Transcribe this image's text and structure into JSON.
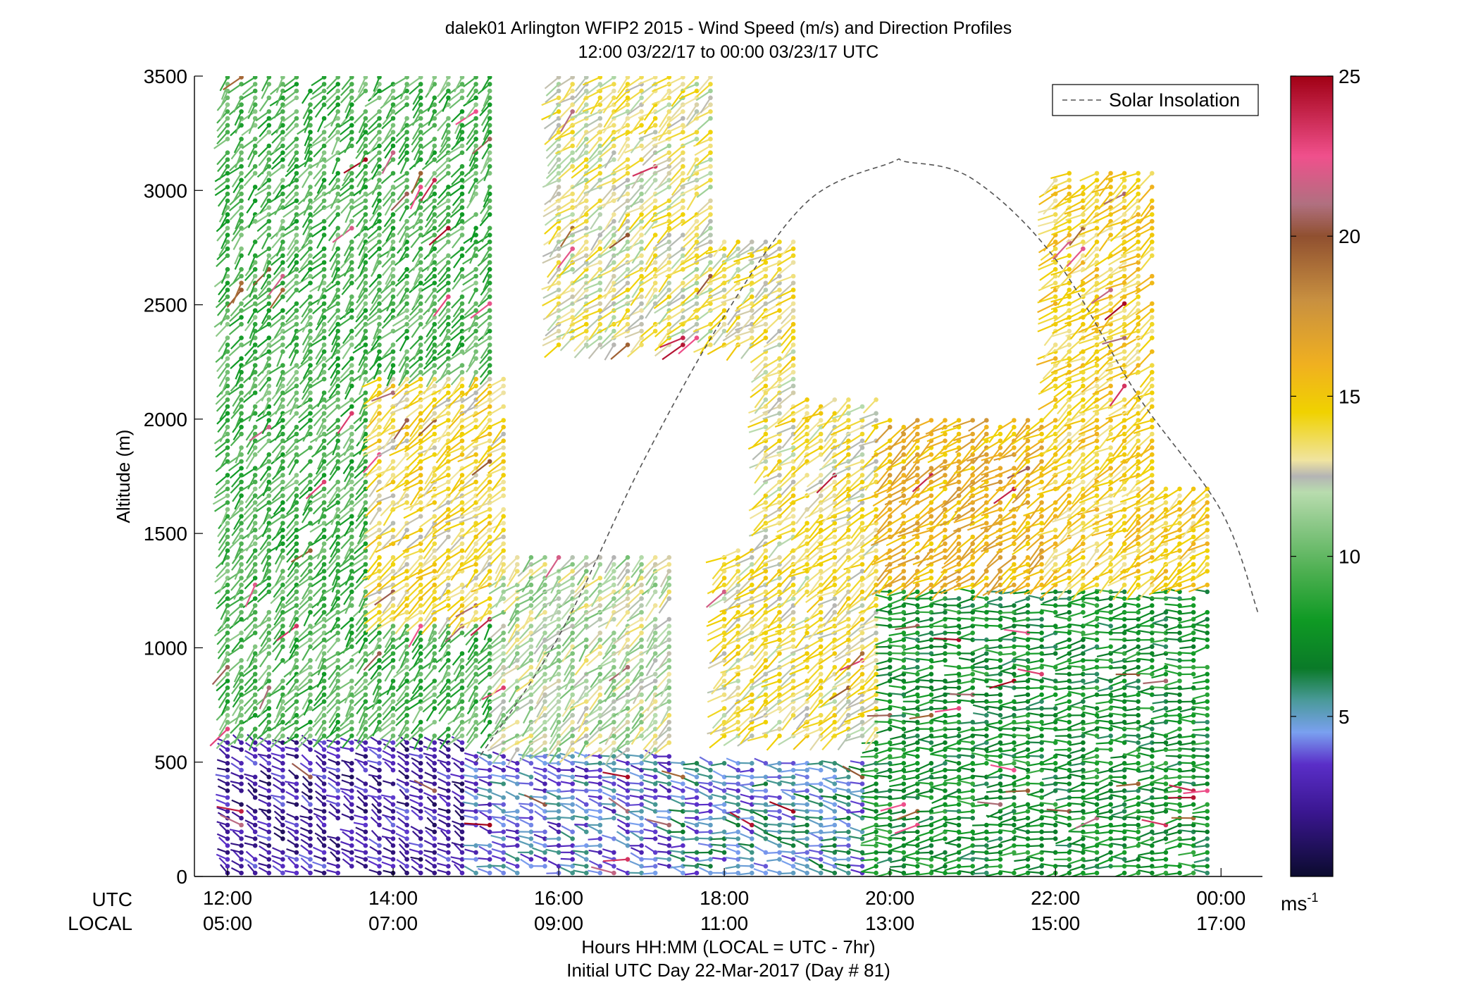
{
  "chart_data": {
    "type": "wind-barb-profile",
    "title": "dalek01 Arlington WFIP2 2015 - Wind Speed (m/s) and Direction Profiles",
    "subtitle": "12:00 03/22/17 to 00:00 03/23/17  UTC",
    "ylabel": "Altitude (m)",
    "ylim": [
      0,
      3500
    ],
    "yticks": [
      0,
      500,
      1000,
      1500,
      2000,
      2500,
      3000,
      3500
    ],
    "ytick_labels": [
      "0",
      "500",
      "1000",
      "1500",
      "2000",
      "2500",
      "3000",
      "3500"
    ],
    "xlim_hours_utc": [
      11.6,
      24.5
    ],
    "xtick_hours": [
      12,
      14,
      16,
      18,
      20,
      22,
      24
    ],
    "xtick_labels_utc": [
      "12:00",
      "14:00",
      "16:00",
      "18:00",
      "20:00",
      "22:00",
      "00:00"
    ],
    "xtick_labels_local": [
      "05:00",
      "07:00",
      "09:00",
      "11:00",
      "13:00",
      "15:00",
      "17:00"
    ],
    "xrow_label_utc": "UTC",
    "xrow_label_local": "LOCAL",
    "xlabel_line1": "Hours HH:MM  (LOCAL = UTC - 7hr)",
    "xlabel_line2": "Initial UTC Day 22-Mar-2017 (Day # 81)",
    "legend": {
      "label": "Solar Insolation",
      "position": "top-right",
      "line_style": "dashed",
      "color": "#555555"
    },
    "colorbar": {
      "range": [
        0,
        25
      ],
      "ticks": [
        5,
        10,
        15,
        20,
        25
      ],
      "tick_labels": [
        "5",
        "10",
        "15",
        "20",
        "25"
      ],
      "unit": "ms",
      "unit_exponent": "-1",
      "color_stops": [
        [
          0,
          "#0b0b2e"
        ],
        [
          2,
          "#3a1690"
        ],
        [
          3.5,
          "#5a2ec8"
        ],
        [
          4.5,
          "#7aa0f0"
        ],
        [
          5.5,
          "#4a9a9a"
        ],
        [
          6.5,
          "#0a7a28"
        ],
        [
          8,
          "#0f9a24"
        ],
        [
          9.5,
          "#4caf50"
        ],
        [
          11,
          "#8cc888"
        ],
        [
          12,
          "#b8dcae"
        ],
        [
          12.5,
          "#b4b4b4"
        ],
        [
          13,
          "#f0e4a0"
        ],
        [
          14.5,
          "#f0d200"
        ],
        [
          16,
          "#f0b020"
        ],
        [
          18,
          "#c89040"
        ],
        [
          20,
          "#905030"
        ],
        [
          21,
          "#b07080"
        ],
        [
          22.5,
          "#f0508c"
        ],
        [
          25,
          "#a00014"
        ]
      ]
    },
    "solar_insolation_curve": {
      "note_units": "hours UTC vs altitude-axis units",
      "x": [
        15.0,
        16.0,
        17.0,
        18.0,
        19.0,
        20.0,
        20.2,
        21.0,
        22.0,
        23.0,
        24.0,
        24.45
      ],
      "y": [
        500,
        1050,
        1800,
        2450,
        2950,
        3120,
        3125,
        3050,
        2700,
        2100,
        1600,
        1150
      ]
    },
    "barb_fields": {
      "profile_times_hours_utc_start": 12.0,
      "profile_times_hours_utc_end": 24.0,
      "profile_interval_hours": 0.166667,
      "altitude_spacing_m": 30,
      "barb_direction_convention": "stick points from base dot toward wind origin",
      "speed_regions": [
        {
          "t": [
            11.9,
            15.0
          ],
          "alt": [
            0,
            600
          ],
          "speed_mean": 2.5,
          "dir_deg": 300
        },
        {
          "t": [
            15.0,
            17.5
          ],
          "alt": [
            0,
            550
          ],
          "speed_mean": 4.3,
          "dir_deg": 285
        },
        {
          "t": [
            17.5,
            19.8
          ],
          "alt": [
            0,
            500
          ],
          "speed_mean": 5.0,
          "dir_deg": 280
        },
        {
          "t": [
            19.8,
            24.1
          ],
          "alt": [
            0,
            1250
          ],
          "speed_mean": 7.5,
          "dir_deg": 265
        },
        {
          "t": [
            11.9,
            15.2
          ],
          "alt": [
            600,
            3500
          ],
          "speed_mean": 9.5,
          "dir_deg": 220
        },
        {
          "t": [
            13.8,
            15.5
          ],
          "alt": [
            1100,
            2200
          ],
          "speed_mean": 14.0,
          "dir_deg": 230
        },
        {
          "t": [
            15.2,
            17.5
          ],
          "alt": [
            550,
            1400
          ],
          "speed_mean": 12.0,
          "dir_deg": 225
        },
        {
          "t": [
            16.0,
            18.0
          ],
          "alt": [
            2300,
            3500
          ],
          "speed_mean": 13.0,
          "dir_deg": 230
        },
        {
          "t": [
            18.0,
            20.0
          ],
          "alt": [
            600,
            2800
          ],
          "speed_mean": 13.5,
          "dir_deg": 235
        },
        {
          "t": [
            20.0,
            22.0
          ],
          "alt": [
            1250,
            2000
          ],
          "speed_mean": 16.0,
          "dir_deg": 235
        },
        {
          "t": [
            22.0,
            24.1
          ],
          "alt": [
            1250,
            3100
          ],
          "speed_mean": 14.5,
          "dir_deg": 235
        }
      ],
      "empty_regions": [
        {
          "t": [
            16.0,
            18.5
          ],
          "alt": [
            1450,
            2300
          ]
        },
        {
          "t": [
            19.0,
            21.2
          ],
          "alt": [
            2100,
            3500
          ]
        },
        {
          "t": [
            23.2,
            24.1
          ],
          "alt": [
            1700,
            3500
          ]
        }
      ]
    }
  }
}
